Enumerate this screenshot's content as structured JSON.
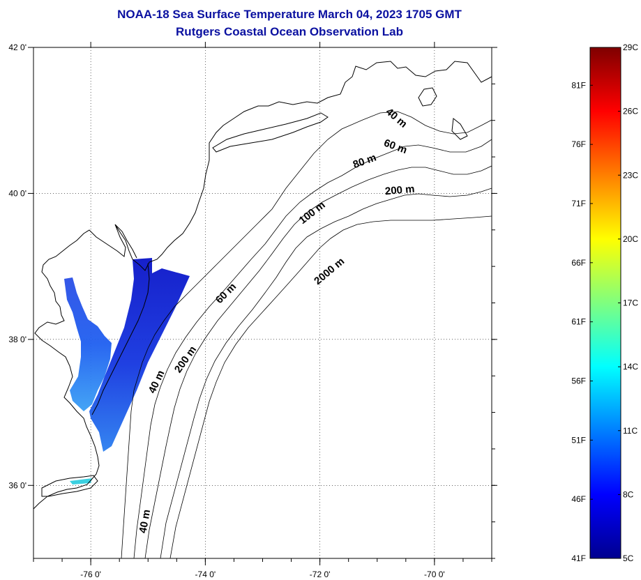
{
  "title": {
    "line1": "NOAA-18 Sea Surface Temperature March 04, 2023 1705 GMT",
    "line2": "Rutgers Coastal Ocean Observation Lab"
  },
  "map": {
    "lon_range": [
      -77.0,
      -69.0
    ],
    "lat_range": [
      35.0,
      42.0
    ],
    "lon_ticks": [
      {
        "value": -76,
        "label": "-76 0'"
      },
      {
        "value": -74,
        "label": "-74 0'"
      },
      {
        "value": -72,
        "label": "-72 0'"
      },
      {
        "value": -70,
        "label": "-70 0'"
      }
    ],
    "lat_ticks": [
      {
        "value": 42,
        "label": "42 0'"
      },
      {
        "value": 40,
        "label": "40 0'"
      },
      {
        "value": 38,
        "label": "38 0'"
      },
      {
        "value": 36,
        "label": "36 0'"
      }
    ],
    "grid": "dotted",
    "contour_labels": [
      {
        "text": "40 m",
        "lon": -70.7,
        "lat": 41.0,
        "angle": 40
      },
      {
        "text": "60 m",
        "lon": -70.7,
        "lat": 40.6,
        "angle": 20
      },
      {
        "text": "80 m",
        "lon": -71.2,
        "lat": 40.4,
        "angle": -20
      },
      {
        "text": "200 m",
        "lon": -70.6,
        "lat": 40.0,
        "angle": -5
      },
      {
        "text": "100 m",
        "lon": -72.1,
        "lat": 39.7,
        "angle": -38
      },
      {
        "text": "2000 m",
        "lon": -71.8,
        "lat": 38.9,
        "angle": -40
      },
      {
        "text": "60 m",
        "lon": -73.6,
        "lat": 38.6,
        "angle": -45
      },
      {
        "text": "200 m",
        "lon": -74.3,
        "lat": 37.7,
        "angle": -55
      },
      {
        "text": "40 m",
        "lon": -74.8,
        "lat": 37.4,
        "angle": -65
      },
      {
        "text": "40 m",
        "lon": -75.0,
        "lat": 35.5,
        "angle": -80
      }
    ]
  },
  "colorbar": {
    "min_c": 5,
    "max_c": 29,
    "celsius_labels": [
      "29C",
      "26C",
      "23C",
      "20C",
      "17C",
      "14C",
      "11C",
      "8C",
      "5C"
    ],
    "fahrenheit_labels": [
      "81F",
      "76F",
      "71F",
      "66F",
      "61F",
      "56F",
      "51F",
      "46F",
      "41F"
    ],
    "colormap": [
      "#00008f",
      "#0000ff",
      "#007fff",
      "#00ffff",
      "#7fff7f",
      "#ffff00",
      "#ff7f00",
      "#ff0000",
      "#7f0000"
    ]
  },
  "sst_observed_range_c": [
    5,
    13
  ]
}
